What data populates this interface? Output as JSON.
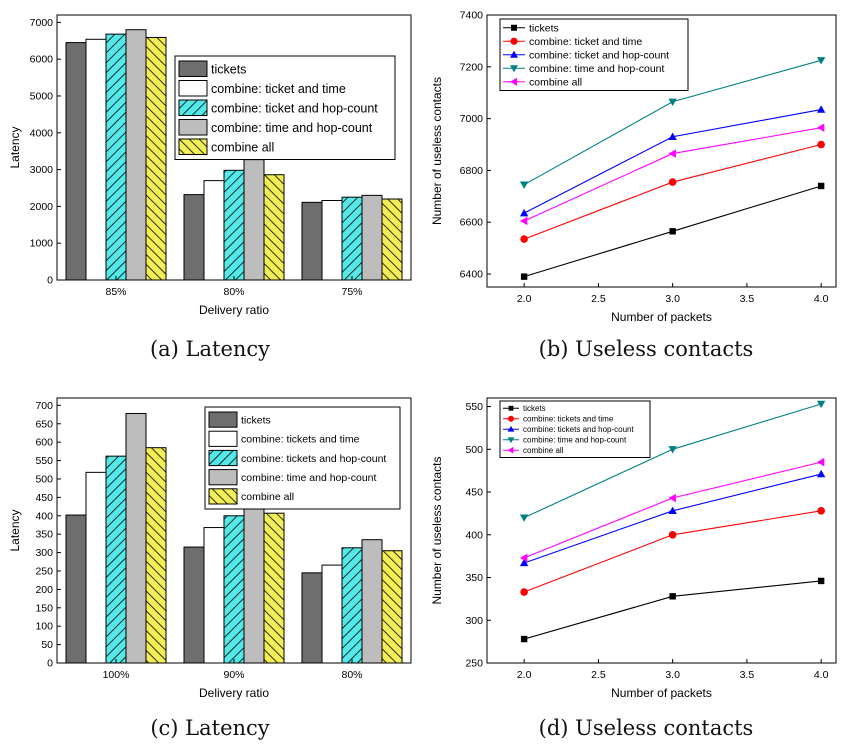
{
  "captions": [
    "(a) Latency",
    "(b) Useless contacts",
    "(c) Latency",
    "(d) Useless contacts"
  ],
  "colors": {
    "tickets": "#6e6e6e",
    "time": "#ffffff",
    "hop": "#55e8e8",
    "time_hop": "#bdbdbd",
    "all": "#f2ee55",
    "line_tickets": "#000000",
    "line_time": "#ff0000",
    "line_hop": "#0000ff",
    "line_time_hop": "#008080",
    "line_all": "#ff00ff"
  },
  "chart_data": [
    {
      "type": "bar",
      "xlabel": "Delivery ratio",
      "ylabel": "Latency",
      "ylim": [
        0,
        7200
      ],
      "yticks": [
        0,
        1000,
        2000,
        3000,
        4000,
        5000,
        6000,
        7000
      ],
      "categories": [
        "85%",
        "80%",
        "75%"
      ],
      "legend_position": "top-right",
      "series": [
        {
          "name": "tickets",
          "values": [
            6450,
            2320,
            2110
          ]
        },
        {
          "name": "combine: ticket and time",
          "values": [
            6540,
            2700,
            2160
          ]
        },
        {
          "name": "combine: ticket and hop-count",
          "values": [
            6680,
            2980,
            2250
          ]
        },
        {
          "name": "combine: time and hop-count",
          "values": [
            6800,
            3270,
            2300
          ]
        },
        {
          "name": "combine all",
          "values": [
            6590,
            2860,
            2200
          ]
        }
      ]
    },
    {
      "type": "line",
      "xlabel": "Number of packets",
      "ylabel": "Number of useless contacts",
      "xlim": [
        1.75,
        4.1
      ],
      "ylim": [
        6350,
        7400
      ],
      "xticks": [
        "2.0",
        "2.5",
        "3.0",
        "3.5",
        "4.0"
      ],
      "yticks": [
        6400,
        6600,
        6800,
        7000,
        7200,
        7400
      ],
      "x": [
        2.0,
        3.0,
        4.0
      ],
      "legend_position": "top-left",
      "series": [
        {
          "name": "tickets",
          "marker": "square",
          "values": [
            6390,
            6565,
            6740
          ]
        },
        {
          "name": "combine: ticket and time",
          "marker": "circle",
          "values": [
            6535,
            6755,
            6900
          ]
        },
        {
          "name": "combine: ticket and hop-count",
          "marker": "triangle-up",
          "values": [
            6635,
            6930,
            7035
          ]
        },
        {
          "name": "combine: time and hop-count",
          "marker": "triangle-down",
          "values": [
            6745,
            7065,
            7225
          ]
        },
        {
          "name": "combine all",
          "marker": "triangle-left",
          "values": [
            6605,
            6865,
            6965
          ]
        }
      ]
    },
    {
      "type": "bar",
      "xlabel": "Delivery ratio",
      "ylabel": "Latency",
      "ylim": [
        0,
        720
      ],
      "yticks": [
        0,
        50,
        100,
        150,
        200,
        250,
        300,
        350,
        400,
        450,
        500,
        550,
        600,
        650,
        700
      ],
      "categories": [
        "100%",
        "90%",
        "80%"
      ],
      "legend_position": "top-right",
      "series": [
        {
          "name": "tickets",
          "values": [
            402,
            315,
            245
          ]
        },
        {
          "name": "combine: tickets and time",
          "values": [
            518,
            368,
            266
          ]
        },
        {
          "name": "combine: tickets and hop-count",
          "values": [
            562,
            400,
            313
          ]
        },
        {
          "name": "combine: time and hop-count",
          "values": [
            678,
            455,
            335
          ]
        },
        {
          "name": "combine all",
          "values": [
            585,
            407,
            305
          ]
        }
      ]
    },
    {
      "type": "line",
      "xlabel": "Number of packets",
      "ylabel": "Number of useless contacts",
      "xlim": [
        1.75,
        4.1
      ],
      "ylim": [
        250,
        560
      ],
      "xticks": [
        "2.0",
        "2.5",
        "3.0",
        "3.5",
        "4.0"
      ],
      "yticks": [
        250,
        300,
        350,
        400,
        450,
        500,
        550
      ],
      "x": [
        2.0,
        3.0,
        4.0
      ],
      "legend_position": "top-left",
      "series": [
        {
          "name": "tickets",
          "marker": "square",
          "values": [
            278,
            328,
            346
          ]
        },
        {
          "name": "combine: tickets and time",
          "marker": "circle",
          "values": [
            333,
            400,
            428
          ]
        },
        {
          "name": "combine: tickets and hop-count",
          "marker": "triangle-up",
          "values": [
            367,
            428,
            471
          ]
        },
        {
          "name": "combine: time and hop-count",
          "marker": "triangle-down",
          "values": [
            420,
            500,
            553
          ]
        },
        {
          "name": "combine all",
          "marker": "triangle-left",
          "values": [
            373,
            443,
            485
          ]
        }
      ]
    }
  ]
}
